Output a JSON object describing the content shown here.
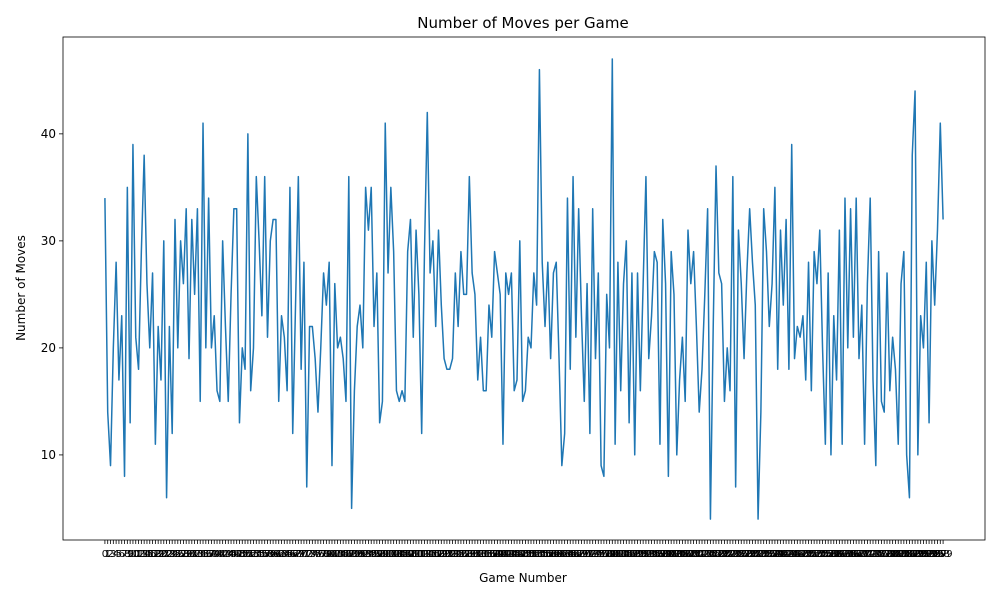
{
  "chart_data": {
    "type": "line",
    "title": "Number of Moves per Game",
    "x_label": "Game Number",
    "y_label": "Number of Moves",
    "x": [
      0,
      1,
      2,
      3,
      4,
      5,
      6,
      7,
      8,
      9,
      10,
      11,
      12,
      13,
      14,
      15,
      16,
      17,
      18,
      19,
      20,
      21,
      22,
      23,
      24,
      25,
      26,
      27,
      28,
      29,
      30,
      31,
      32,
      33,
      34,
      35,
      36,
      37,
      38,
      39,
      40,
      41,
      42,
      43,
      44,
      45,
      46,
      47,
      48,
      49,
      50,
      51,
      52,
      53,
      54,
      55,
      56,
      57,
      58,
      59,
      60,
      61,
      62,
      63,
      64,
      65,
      66,
      67,
      68,
      69,
      70,
      71,
      72,
      73,
      74,
      75,
      76,
      77,
      78,
      79,
      80,
      81,
      82,
      83,
      84,
      85,
      86,
      87,
      88,
      89,
      90,
      91,
      92,
      93,
      94,
      95,
      96,
      97,
      98,
      99,
      100,
      101,
      102,
      103,
      104,
      105,
      106,
      107,
      108,
      109,
      110,
      111,
      112,
      113,
      114,
      115,
      116,
      117,
      118,
      119,
      120,
      121,
      122,
      123,
      124,
      125,
      126,
      127,
      128,
      129,
      130,
      131,
      132,
      133,
      134,
      135,
      136,
      137,
      138,
      139,
      140,
      141,
      142,
      143,
      144,
      145,
      146,
      147,
      148,
      149,
      150,
      151,
      152,
      153,
      154,
      155,
      156,
      157,
      158,
      159,
      160,
      161,
      162,
      163,
      164,
      165,
      166,
      167,
      168,
      169,
      170,
      171,
      172,
      173,
      174,
      175,
      176,
      177,
      178,
      179,
      180,
      181,
      182,
      183,
      184,
      185,
      186,
      187,
      188,
      189,
      190,
      191,
      192,
      193,
      194,
      195,
      196,
      197,
      198,
      199,
      200,
      201,
      202,
      203,
      204,
      205,
      206,
      207,
      208,
      209,
      210,
      211,
      212,
      213,
      214,
      215,
      216,
      217,
      218,
      219,
      220,
      221,
      222,
      223,
      224,
      225,
      226,
      227,
      228,
      229,
      230,
      231,
      232,
      233,
      234,
      235,
      236,
      237,
      238,
      239,
      240,
      241,
      242,
      243,
      244,
      245,
      246,
      247,
      248,
      249,
      250,
      251,
      252,
      253,
      254,
      255,
      256,
      257,
      258,
      259,
      260,
      261,
      262,
      263,
      264,
      265,
      266,
      267,
      268,
      269,
      270,
      271,
      272,
      273,
      274,
      275,
      276,
      277,
      278,
      279,
      280,
      281,
      282,
      283,
      284,
      285,
      286,
      287,
      288,
      289,
      290,
      291,
      292,
      293,
      294,
      295,
      296,
      297,
      298,
      299
    ],
    "series": [
      {
        "name": "Number of Moves",
        "color": "#1f77b4",
        "values": [
          34,
          14,
          9,
          20,
          28,
          17,
          23,
          8,
          35,
          13,
          39,
          21,
          18,
          29,
          38,
          26,
          20,
          27,
          11,
          22,
          17,
          30,
          6,
          22,
          12,
          32,
          20,
          30,
          26,
          33,
          19,
          32,
          25,
          33,
          15,
          41,
          20,
          34,
          20,
          23,
          16,
          15,
          30,
          22,
          15,
          25,
          33,
          33,
          13,
          20,
          18,
          40,
          16,
          20,
          36,
          30,
          23,
          36,
          21,
          30,
          32,
          32,
          15,
          23,
          21,
          16,
          35,
          12,
          24,
          36,
          18,
          28,
          7,
          22,
          22,
          19,
          14,
          20,
          27,
          24,
          28,
          9,
          26,
          20,
          21,
          19,
          15,
          36,
          5,
          16,
          22,
          24,
          20,
          35,
          31,
          35,
          22,
          27,
          13,
          15,
          41,
          27,
          35,
          29,
          16,
          15,
          16,
          15,
          29,
          32,
          21,
          31,
          25,
          12,
          29,
          42,
          27,
          30,
          22,
          31,
          24,
          19,
          18,
          18,
          19,
          27,
          22,
          29,
          25,
          25,
          36,
          27,
          25,
          17,
          21,
          16,
          16,
          24,
          21,
          29,
          27,
          25,
          11,
          27,
          25,
          27,
          16,
          17,
          30,
          15,
          16,
          21,
          20,
          27,
          24,
          46,
          28,
          22,
          28,
          19,
          27,
          28,
          19,
          9,
          12,
          34,
          18,
          36,
          21,
          33,
          23,
          15,
          26,
          12,
          33,
          19,
          27,
          9,
          8,
          25,
          20,
          47,
          11,
          28,
          16,
          26,
          30,
          13,
          27,
          10,
          27,
          16,
          26,
          36,
          19,
          23,
          29,
          28,
          11,
          32,
          26,
          8,
          29,
          25,
          10,
          17,
          21,
          15,
          31,
          26,
          29,
          22,
          14,
          18,
          25,
          33,
          4,
          22,
          37,
          27,
          26,
          15,
          20,
          16,
          36,
          7,
          31,
          26,
          19,
          27,
          33,
          28,
          24,
          4,
          14,
          33,
          29,
          22,
          26,
          35,
          18,
          31,
          24,
          32,
          18,
          39,
          19,
          22,
          21,
          23,
          17,
          28,
          16,
          29,
          26,
          31,
          20,
          11,
          27,
          10,
          23,
          17,
          31,
          11,
          34,
          20,
          33,
          21,
          34,
          19,
          24,
          11,
          26,
          34,
          17,
          9,
          29,
          15,
          14,
          27,
          16,
          21,
          18,
          11,
          26,
          29,
          10,
          6,
          38,
          44,
          10,
          23,
          20,
          28,
          13,
          30,
          24,
          31,
          41,
          32
        ]
      }
    ],
    "ylim": [
      2.05,
      49.05
    ],
    "yticks": [
      10,
      20,
      30,
      40
    ]
  }
}
